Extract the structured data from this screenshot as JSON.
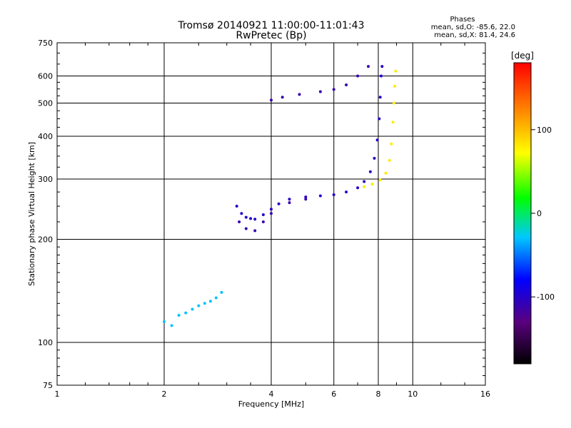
{
  "chart_data": {
    "type": "scatter",
    "title": "Tromsø 20140921 11:00:00-11:01:43",
    "subtitle": "RwPretec (Bp)",
    "xlabel": "Frequency [MHz]",
    "ylabel": "Stationary phase Virtual Height [km]",
    "x_scale": "log",
    "y_scale": "log",
    "xlim": [
      1,
      16
    ],
    "ylim": [
      75,
      750
    ],
    "x_ticks": [
      "1",
      "2",
      "4",
      "6",
      "8",
      "10",
      "16"
    ],
    "y_ticks": [
      "75",
      "100",
      "200",
      "300",
      "400",
      "500",
      "600",
      "750"
    ],
    "grid": true,
    "stats": {
      "header": "Phases",
      "line1": "mean, sd,O: -85.6, 22.0",
      "line2": "mean, sd,X:  81.4, 24.6"
    },
    "colorbar": {
      "label": "[deg]",
      "range": [
        -180,
        180
      ],
      "ticks": [
        "100",
        "0",
        "-100"
      ],
      "colormap": "rainbow"
    },
    "series": [
      {
        "mode": "O",
        "phase_deg": -100,
        "points": [
          [
            3.2,
            250
          ],
          [
            3.3,
            238
          ],
          [
            3.4,
            232
          ],
          [
            3.5,
            230
          ],
          [
            3.6,
            229
          ],
          [
            3.8,
            236
          ],
          [
            4.0,
            245
          ],
          [
            4.2,
            254
          ],
          [
            4.5,
            262
          ],
          [
            5.0,
            266
          ],
          [
            5.5,
            268
          ],
          [
            6.0,
            270
          ],
          [
            6.5,
            275
          ],
          [
            7.0,
            283
          ],
          [
            7.3,
            295
          ],
          [
            7.6,
            315
          ],
          [
            7.8,
            345
          ],
          [
            7.95,
            390
          ],
          [
            8.05,
            450
          ],
          [
            8.1,
            520
          ],
          [
            8.15,
            600
          ],
          [
            8.2,
            640
          ]
        ]
      },
      {
        "mode": "X",
        "phase_deg": 80,
        "points": [
          [
            7.3,
            285
          ],
          [
            7.7,
            290
          ],
          [
            8.1,
            298
          ],
          [
            8.4,
            312
          ],
          [
            8.6,
            340
          ],
          [
            8.7,
            380
          ],
          [
            8.8,
            440
          ],
          [
            8.85,
            500
          ],
          [
            8.9,
            560
          ],
          [
            8.95,
            620
          ]
        ]
      },
      {
        "mode": "F1",
        "phase_deg": -110,
        "points": [
          [
            3.25,
            225
          ],
          [
            3.4,
            215
          ],
          [
            3.6,
            212
          ],
          [
            3.8,
            225
          ],
          [
            4.0,
            238
          ],
          [
            4.5,
            256
          ],
          [
            5.0,
            262
          ]
        ]
      },
      {
        "mode": "Fupper",
        "phase_deg": -110,
        "points": [
          [
            4.0,
            510
          ],
          [
            4.3,
            520
          ],
          [
            4.8,
            530
          ],
          [
            5.5,
            540
          ],
          [
            6.0,
            548
          ],
          [
            6.5,
            565
          ],
          [
            7.0,
            600
          ],
          [
            7.5,
            640
          ]
        ]
      },
      {
        "mode": "E",
        "phase_deg": -30,
        "points": [
          [
            2.0,
            115
          ],
          [
            2.1,
            112
          ],
          [
            2.2,
            120
          ],
          [
            2.3,
            122
          ],
          [
            2.4,
            125
          ],
          [
            2.5,
            128
          ],
          [
            2.6,
            130
          ],
          [
            2.7,
            132
          ],
          [
            2.8,
            135
          ],
          [
            2.9,
            140
          ]
        ]
      }
    ]
  }
}
